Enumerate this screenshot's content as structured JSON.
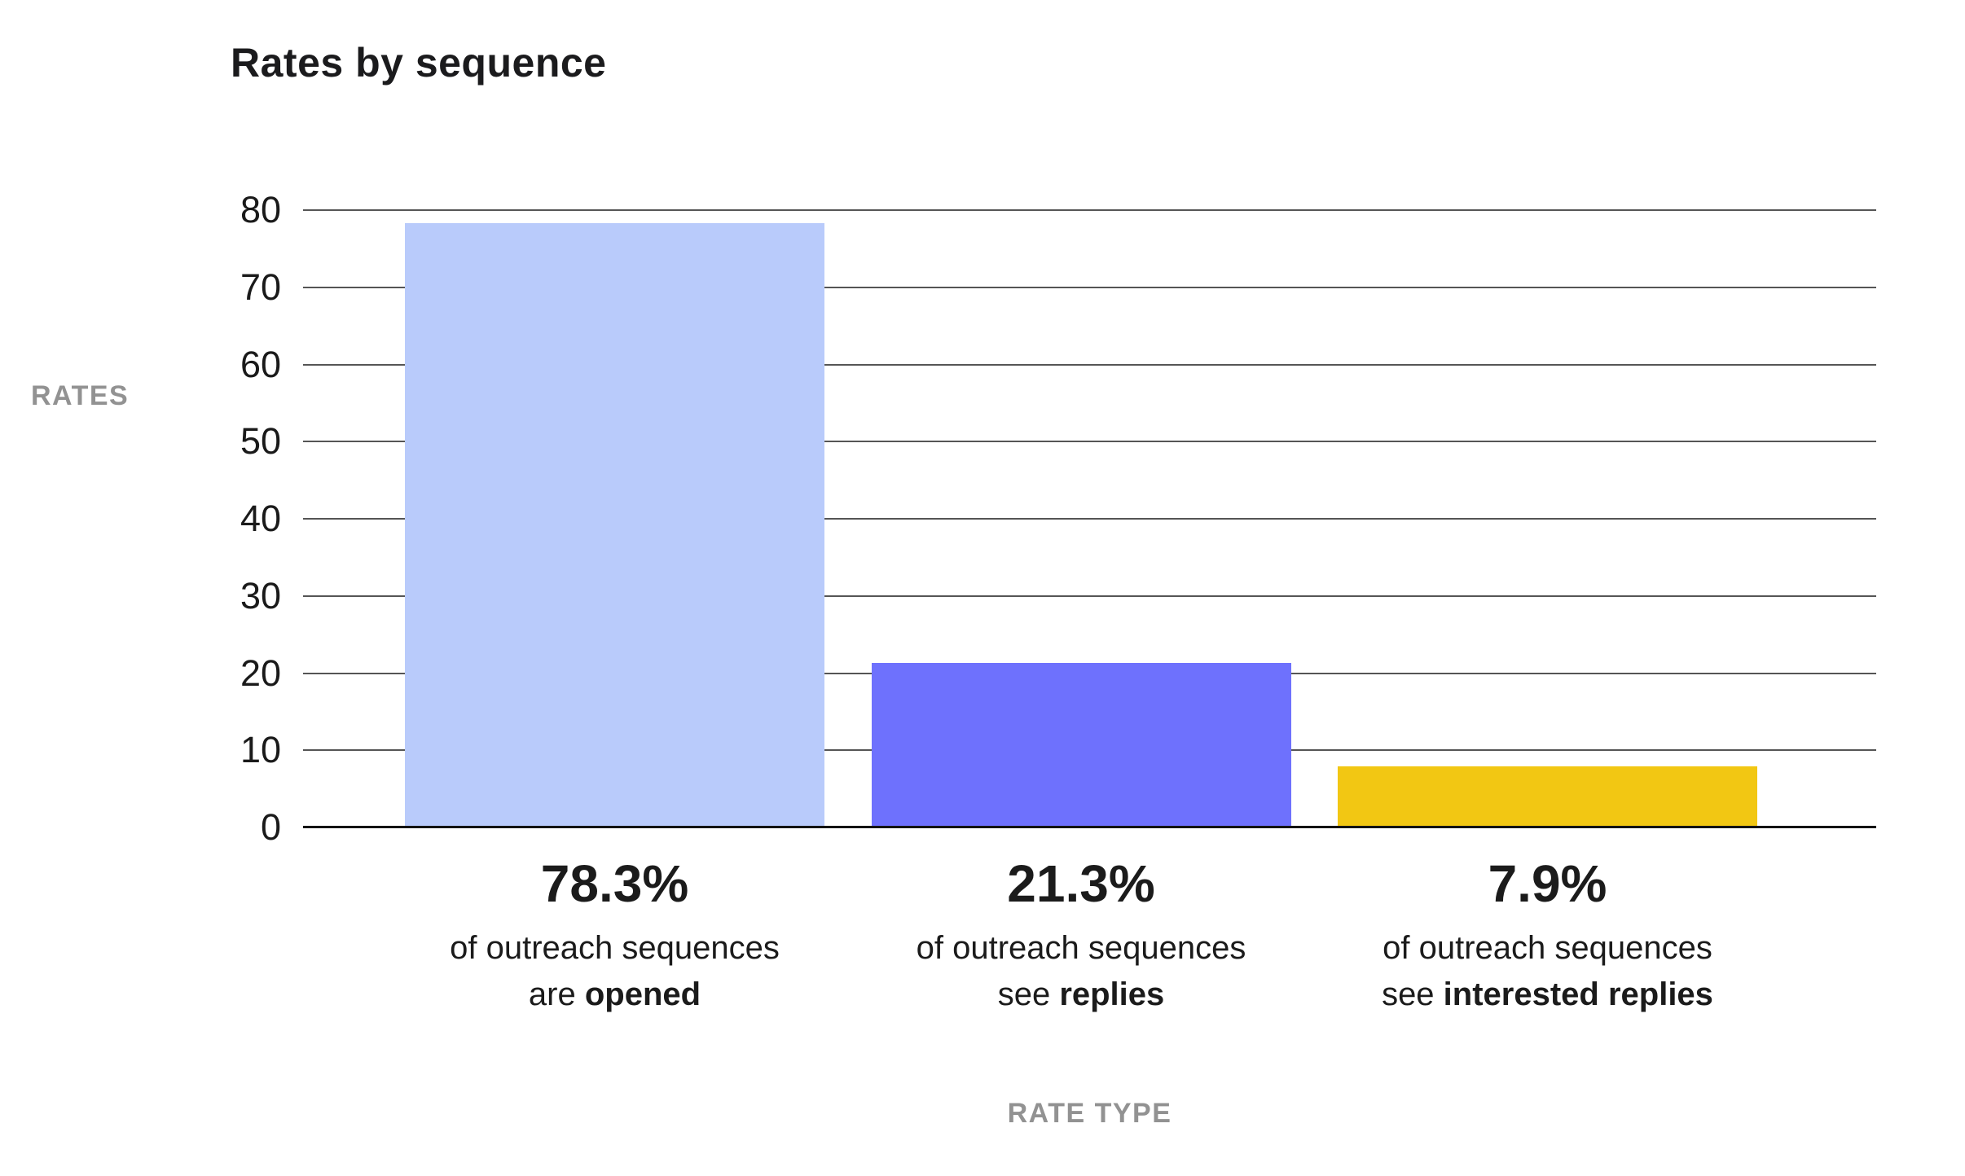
{
  "title": "Rates by sequence",
  "colors": {
    "background": "#ffffff",
    "text_dark": "#1b1b1d",
    "text_gray": "#929292",
    "gridline": "#555555",
    "baseline": "#141414"
  },
  "chart_data": {
    "type": "bar",
    "title": "Rates by sequence",
    "xlabel": "RATE TYPE",
    "ylabel": "RATES",
    "ylim": [
      0,
      80
    ],
    "ytick_step": 10,
    "yticks": [
      0,
      10,
      20,
      30,
      40,
      50,
      60,
      70,
      80
    ],
    "grid": "horizontal",
    "legend": "none",
    "categories": [
      "opened",
      "replies",
      "interested replies"
    ],
    "values": [
      78.3,
      21.3,
      7.9
    ],
    "bar_colors": [
      "#b9cbfb",
      "#6e71fd",
      "#f2c713"
    ],
    "bar_labels": [
      {
        "headline": "78.3%",
        "line1": "of outreach sequences",
        "line2_prefix": "are ",
        "line2_bold": "opened"
      },
      {
        "headline": "21.3%",
        "line1": "of outreach sequences",
        "line2_prefix": "see ",
        "line2_bold": "replies"
      },
      {
        "headline": "7.9%",
        "line1": "of outreach sequences",
        "line2_prefix": "see ",
        "line2_bold": "interested replies"
      }
    ]
  }
}
